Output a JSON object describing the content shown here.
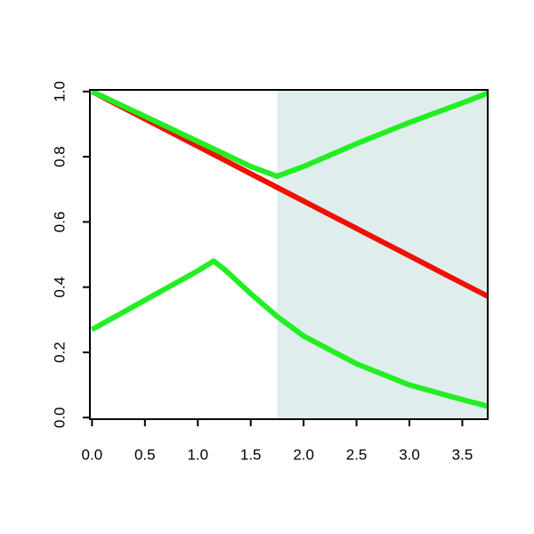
{
  "chart_data": {
    "type": "line",
    "x": [
      0,
      0.5,
      1.0,
      1.15,
      1.25,
      1.5,
      1.75,
      2.0,
      2.5,
      3.0,
      3.5,
      3.74
    ],
    "series": [
      {
        "color": "#ee1100",
        "values": [
          1,
          0.916,
          0.832,
          0.807,
          0.79,
          0.748,
          0.706,
          0.664,
          0.58,
          0.496,
          0.412,
          0.372
        ]
      },
      {
        "color": "#22ee22",
        "values": [
          1,
          0.924,
          0.847,
          0.824,
          0.809,
          0.77,
          0.74,
          0.77,
          0.84,
          0.905,
          0.965,
          0.995
        ]
      },
      {
        "color": "#22ee22",
        "values": [
          0.27,
          0.36,
          0.45,
          0.48,
          0.455,
          0.38,
          0.31,
          0.25,
          0.165,
          0.1,
          0.055,
          0.035
        ]
      }
    ],
    "shade_from": 1.75,
    "shade_color": "#e0eded",
    "xlim": [
      -0.02,
      3.74
    ],
    "ylim": [
      -0.005,
      1.005
    ],
    "xticks": [
      {
        "value": 0,
        "label": "0.0"
      },
      0.5,
      {
        "value": 1,
        "label": "1.0"
      },
      1.5,
      {
        "value": 2,
        "label": "2.0"
      },
      2.5,
      {
        "value": 3,
        "label": "3.0"
      },
      3.5
    ],
    "yticks": [
      {
        "value": 0,
        "label": "0.0"
      },
      0.2,
      0.4,
      0.6,
      0.8,
      {
        "value": 1,
        "label": "1.0"
      }
    ]
  }
}
